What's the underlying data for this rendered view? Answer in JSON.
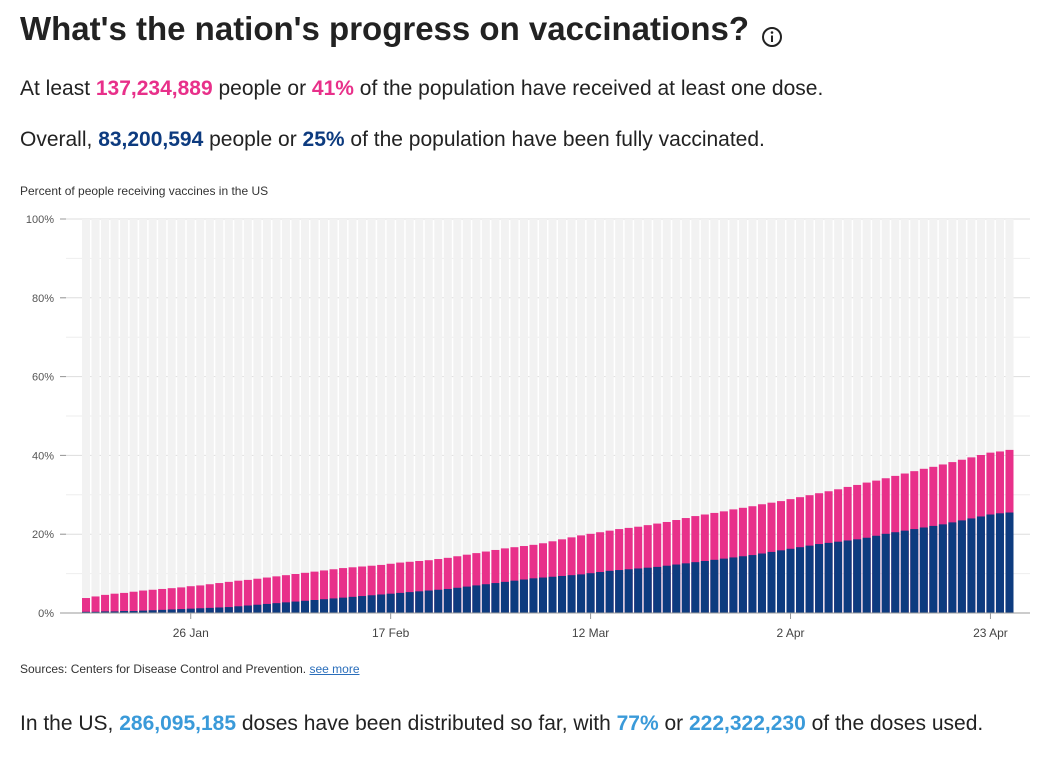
{
  "header": {
    "title": "What's the nation's progress on vaccinations?",
    "info_icon": "info-circle-icon"
  },
  "summary": {
    "one_dose": {
      "prefix": "At least ",
      "count": "137,234,889",
      "mid": " people or ",
      "percent": "41%",
      "suffix": " of the population have received at least one dose."
    },
    "fully": {
      "prefix": "Overall, ",
      "count": "83,200,594",
      "mid": " people or ",
      "percent": "25%",
      "suffix": " of the population have been fully vaccinated."
    },
    "doses": {
      "prefix": "In the US, ",
      "distributed": "286,095,185",
      "mid1": " doses have been distributed so far, with ",
      "percent": "77%",
      "mid2": " or ",
      "used": "222,322,230",
      "suffix": " of the doses used."
    }
  },
  "sources": {
    "text": "Sources: Centers for Disease Control and Prevention. ",
    "link": "see more"
  },
  "colors": {
    "one_dose": "#e8308a",
    "fully": "#0d3b7f",
    "background_bar": "#f2f2f2",
    "accent_blue": "#3a9ad9"
  },
  "chart_data": {
    "type": "bar",
    "stacked": "overlay",
    "title": "Percent of people receiving vaccines in the US",
    "ylim": [
      0,
      100
    ],
    "yticks": [
      0,
      20,
      40,
      60,
      80,
      100
    ],
    "ytick_labels": [
      "0%",
      "20%",
      "40%",
      "60%",
      "80%",
      "100%"
    ],
    "x_start_date": "2021-01-15",
    "x_tick_labels": [
      {
        "label": "26 Jan",
        "index": 11
      },
      {
        "label": "17 Feb",
        "index": 32
      },
      {
        "label": "12 Mar",
        "index": 53
      },
      {
        "label": "2 Apr",
        "index": 74
      },
      {
        "label": "23 Apr",
        "index": 95
      }
    ],
    "grid": true,
    "series": [
      {
        "name": "At least one dose",
        "values": [
          3.8,
          4.2,
          4.6,
          4.9,
          5.1,
          5.4,
          5.7,
          5.9,
          6.1,
          6.3,
          6.5,
          6.8,
          7.0,
          7.3,
          7.6,
          7.9,
          8.2,
          8.4,
          8.7,
          9.0,
          9.3,
          9.6,
          9.9,
          10.2,
          10.5,
          10.8,
          11.1,
          11.4,
          11.6,
          11.8,
          12.0,
          12.2,
          12.5,
          12.8,
          13.0,
          13.2,
          13.4,
          13.7,
          14.0,
          14.4,
          14.8,
          15.2,
          15.6,
          16.0,
          16.4,
          16.7,
          17.0,
          17.3,
          17.7,
          18.2,
          18.7,
          19.2,
          19.7,
          20.1,
          20.5,
          20.9,
          21.3,
          21.6,
          21.9,
          22.3,
          22.7,
          23.1,
          23.6,
          24.1,
          24.6,
          25.0,
          25.4,
          25.8,
          26.3,
          26.7,
          27.1,
          27.6,
          28.0,
          28.4,
          28.9,
          29.4,
          29.9,
          30.4,
          30.9,
          31.4,
          32.0,
          32.5,
          33.1,
          33.6,
          34.2,
          34.8,
          35.4,
          36.0,
          36.6,
          37.1,
          37.7,
          38.3,
          38.9,
          39.5,
          40.1,
          40.7,
          41.0,
          41.4
        ]
      },
      {
        "name": "Fully vaccinated",
        "values": [
          0.3,
          0.3,
          0.4,
          0.4,
          0.5,
          0.5,
          0.6,
          0.7,
          0.8,
          0.9,
          1.0,
          1.1,
          1.2,
          1.3,
          1.4,
          1.5,
          1.7,
          1.9,
          2.1,
          2.3,
          2.5,
          2.7,
          2.9,
          3.1,
          3.3,
          3.5,
          3.7,
          3.9,
          4.1,
          4.3,
          4.5,
          4.7,
          4.9,
          5.1,
          5.3,
          5.5,
          5.7,
          5.9,
          6.1,
          6.4,
          6.7,
          7.0,
          7.3,
          7.6,
          7.9,
          8.2,
          8.5,
          8.8,
          9.0,
          9.2,
          9.4,
          9.6,
          9.8,
          10.1,
          10.4,
          10.7,
          10.9,
          11.1,
          11.3,
          11.5,
          11.7,
          12.0,
          12.3,
          12.6,
          12.9,
          13.2,
          13.5,
          13.8,
          14.1,
          14.4,
          14.7,
          15.1,
          15.5,
          15.9,
          16.3,
          16.7,
          17.1,
          17.5,
          17.8,
          18.1,
          18.4,
          18.7,
          19.1,
          19.6,
          20.1,
          20.5,
          20.9,
          21.3,
          21.7,
          22.1,
          22.5,
          23.0,
          23.5,
          24.0,
          24.5,
          25.0,
          25.3,
          25.5
        ]
      }
    ]
  }
}
